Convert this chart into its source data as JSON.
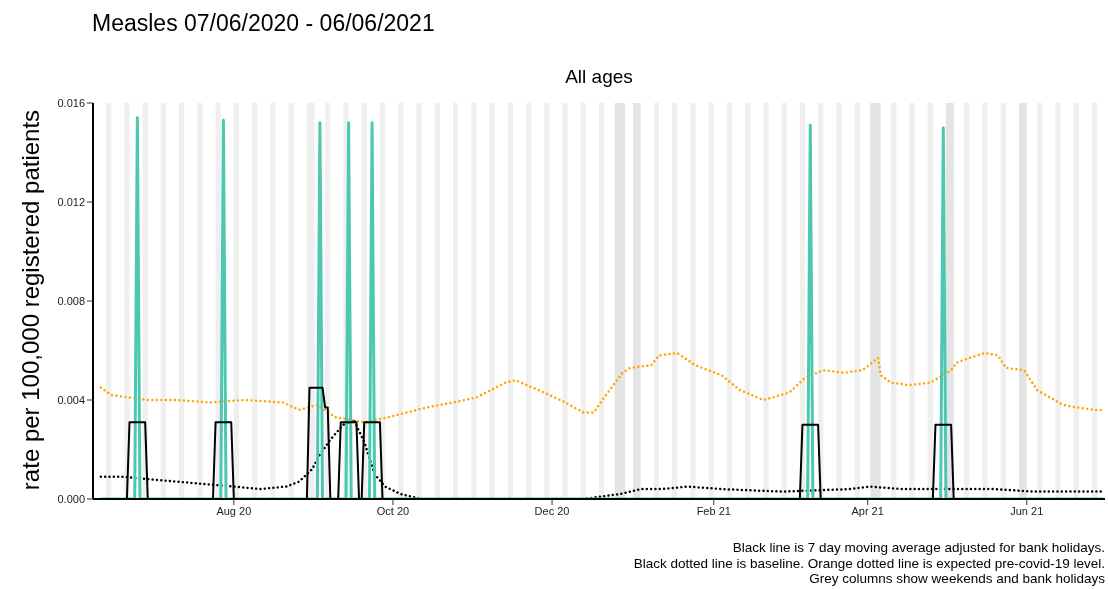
{
  "chart_data": {
    "type": "line",
    "title": "Measles 07/06/2020 - 06/06/2021",
    "subtitle": "All ages",
    "ylabel": "rate per 100,000 registered patients",
    "annotations": [
      "Black line is 7 day moving average adjusted for bank holidays.",
      "Black dotted line is baseline. Orange dotted line is expected pre-covid-19 level.",
      "Grey columns show weekends and bank holidays"
    ],
    "xlim": [
      "2020-06-08",
      "2021-07-01"
    ],
    "xticks": [
      {
        "value": "2020-08-01",
        "label": "Aug 20"
      },
      {
        "value": "2020-10-01",
        "label": "Oct 20"
      },
      {
        "value": "2020-12-01",
        "label": "Dec 20"
      },
      {
        "value": "2021-02-01",
        "label": "Feb 21"
      },
      {
        "value": "2021-04-01",
        "label": "Apr 21"
      },
      {
        "value": "2021-06-01",
        "label": "Jun 21"
      }
    ],
    "ylim": [
      0,
      0.016
    ],
    "yticks": [
      {
        "value": 0,
        "label": "0.000"
      },
      {
        "value": 0.004,
        "label": "0.004"
      },
      {
        "value": 0.008,
        "label": "0.008"
      },
      {
        "value": 0.012,
        "label": "0.012"
      },
      {
        "value": 0.016,
        "label": "0.016"
      }
    ],
    "grid": false,
    "series": [
      {
        "line_style": "dotted",
        "color": "#ffa500",
        "x": [
          "2020-06-11",
          "2020-06-15",
          "2020-06-22",
          "2020-06-29",
          "2020-07-10",
          "2020-07-23",
          "2020-08-05",
          "2020-08-20",
          "2020-08-26",
          "2020-09-02",
          "2020-09-09",
          "2020-09-20",
          "2020-09-29",
          "2020-10-14",
          "2020-10-24",
          "2020-11-02",
          "2020-11-13",
          "2020-11-17",
          "2020-11-28",
          "2020-12-06",
          "2020-12-13",
          "2020-12-17",
          "2020-12-21",
          "2020-12-28",
          "2020-12-31",
          "2021-01-08",
          "2021-01-11",
          "2021-01-18",
          "2021-01-25",
          "2021-02-04",
          "2021-02-11",
          "2021-02-20",
          "2021-03-02",
          "2021-03-08",
          "2021-03-15",
          "2021-03-23",
          "2021-03-30",
          "2021-04-05",
          "2021-04-06",
          "2021-04-10",
          "2021-04-17",
          "2021-04-25",
          "2021-05-03",
          "2021-05-05",
          "2021-05-10",
          "2021-05-16",
          "2021-05-21",
          "2021-05-24",
          "2021-05-31",
          "2021-06-05",
          "2021-06-15",
          "2021-06-20",
          "2021-06-27",
          "2021-06-30"
        ],
        "values": [
          0.0045,
          0.0042,
          0.0041,
          0.004,
          0.004,
          0.0039,
          0.004,
          0.0039,
          0.0036,
          0.0038,
          0.0033,
          0.0031,
          0.0033,
          0.0037,
          0.0039,
          0.0041,
          0.0047,
          0.0048,
          0.0043,
          0.0039,
          0.0035,
          0.0035,
          0.0041,
          0.0051,
          0.0053,
          0.0054,
          0.0058,
          0.0059,
          0.0054,
          0.005,
          0.0044,
          0.004,
          0.0043,
          0.0049,
          0.0052,
          0.0051,
          0.0052,
          0.0057,
          0.005,
          0.0047,
          0.0046,
          0.0047,
          0.0052,
          0.0055,
          0.0057,
          0.0059,
          0.0058,
          0.0053,
          0.0052,
          0.0044,
          0.0038,
          0.0037,
          0.0036,
          0.0036
        ]
      },
      {
        "line_style": "dotted",
        "color": "#000000",
        "x": [
          "2020-06-11",
          "2020-06-19",
          "2020-06-29",
          "2020-07-10",
          "2020-07-21",
          "2020-08-01",
          "2020-08-11",
          "2020-08-21",
          "2020-08-26",
          "2020-08-31",
          "2020-09-03",
          "2020-09-07",
          "2020-09-12",
          "2020-09-16",
          "2020-09-20",
          "2020-09-24",
          "2020-09-28",
          "2020-10-04",
          "2020-10-12",
          "2020-12-13",
          "2020-12-27",
          "2021-01-04",
          "2021-01-12",
          "2021-01-22",
          "2021-02-04",
          "2021-02-27",
          "2021-03-25",
          "2021-04-02",
          "2021-04-14",
          "2021-05-03",
          "2021-05-19",
          "2021-06-04",
          "2021-06-30"
        ],
        "values": [
          0.0009,
          0.0009,
          0.0008,
          0.0007,
          0.0006,
          0.0005,
          0.0004,
          0.0005,
          0.0007,
          0.0012,
          0.0018,
          0.0024,
          0.003,
          0.0032,
          0.0023,
          0.001,
          0.0005,
          0.0002,
          0,
          0,
          0.0002,
          0.0004,
          0.0004,
          0.0005,
          0.0004,
          0.0003,
          0.0004,
          0.0005,
          0.0004,
          0.0004,
          0.0004,
          0.0003,
          0.0003
        ]
      },
      {
        "line_style": "solid",
        "color": "#4dc8b0",
        "x": [
          "2020-06-11",
          "2020-06-24",
          "2020-06-25",
          "2020-06-26",
          "2020-07-27",
          "2020-07-28",
          "2020-07-29",
          "2020-09-02",
          "2020-09-03",
          "2020-09-04",
          "2020-09-13",
          "2020-09-14",
          "2020-09-15",
          "2020-09-22",
          "2020-09-23",
          "2020-09-24",
          "2021-03-09",
          "2021-03-10",
          "2021-03-11",
          "2021-04-29",
          "2021-04-30",
          "2021-05-01",
          "2021-06-30"
        ],
        "values": [
          0,
          0,
          0.0154,
          0,
          0,
          0.0153,
          0,
          0,
          0.0152,
          0,
          0,
          0.0152,
          0,
          0,
          0.0152,
          0,
          0,
          0.0151,
          0,
          0,
          0.015,
          0,
          0
        ]
      },
      {
        "line_style": "solid",
        "color": "#000000",
        "x": [
          "2020-06-11",
          "2020-06-21",
          "2020-06-22",
          "2020-06-28",
          "2020-06-29",
          "2020-07-24",
          "2020-07-25",
          "2020-07-31",
          "2020-08-01",
          "2020-08-29",
          "2020-08-30",
          "2020-09-04",
          "2020-09-05",
          "2020-09-06",
          "2020-09-07",
          "2020-09-10",
          "2020-09-11",
          "2020-09-17",
          "2020-09-18",
          "2020-09-19",
          "2020-09-20",
          "2020-09-26",
          "2020-09-27",
          "2021-03-06",
          "2021-03-07",
          "2021-03-13",
          "2021-03-14",
          "2021-04-26",
          "2021-04-27",
          "2021-05-03",
          "2021-05-04",
          "2021-06-30"
        ],
        "values": [
          0,
          0,
          0.0031,
          0.0031,
          0,
          0,
          0.0031,
          0.0031,
          0,
          0,
          0.0045,
          0.0045,
          0.0037,
          0.0037,
          0,
          0,
          0.0031,
          0.0031,
          0,
          0,
          0.0031,
          0.0031,
          0,
          0,
          0.003,
          0.003,
          0,
          0,
          0.003,
          0.003,
          0,
          0
        ]
      }
    ],
    "bands": [
      {
        "axis": "x",
        "from": "2020-06-13",
        "to": "2020-06-15",
        "color": "#efefef"
      },
      {
        "axis": "x",
        "from": "2020-06-20",
        "to": "2020-06-22",
        "color": "#efefef"
      },
      {
        "axis": "x",
        "from": "2020-06-27",
        "to": "2020-06-29",
        "color": "#efefef"
      },
      {
        "axis": "x",
        "from": "2020-07-04",
        "to": "2020-07-06",
        "color": "#efefef"
      },
      {
        "axis": "x",
        "from": "2020-07-11",
        "to": "2020-07-13",
        "color": "#efefef"
      },
      {
        "axis": "x",
        "from": "2020-07-18",
        "to": "2020-07-20",
        "color": "#efefef"
      },
      {
        "axis": "x",
        "from": "2020-07-25",
        "to": "2020-07-27",
        "color": "#efefef"
      },
      {
        "axis": "x",
        "from": "2020-08-01",
        "to": "2020-08-03",
        "color": "#efefef"
      },
      {
        "axis": "x",
        "from": "2020-08-08",
        "to": "2020-08-10",
        "color": "#efefef"
      },
      {
        "axis": "x",
        "from": "2020-08-15",
        "to": "2020-08-17",
        "color": "#efefef"
      },
      {
        "axis": "x",
        "from": "2020-08-22",
        "to": "2020-08-24",
        "color": "#efefef"
      },
      {
        "axis": "x",
        "from": "2020-08-29",
        "to": "2020-09-01",
        "color": "#efefef"
      },
      {
        "axis": "x",
        "from": "2020-09-05",
        "to": "2020-09-07",
        "color": "#efefef"
      },
      {
        "axis": "x",
        "from": "2020-09-12",
        "to": "2020-09-14",
        "color": "#efefef"
      },
      {
        "axis": "x",
        "from": "2020-09-19",
        "to": "2020-09-21",
        "color": "#efefef"
      },
      {
        "axis": "x",
        "from": "2020-09-26",
        "to": "2020-09-28",
        "color": "#efefef"
      },
      {
        "axis": "x",
        "from": "2020-10-03",
        "to": "2020-10-05",
        "color": "#efefef"
      },
      {
        "axis": "x",
        "from": "2020-10-10",
        "to": "2020-10-12",
        "color": "#efefef"
      },
      {
        "axis": "x",
        "from": "2020-10-17",
        "to": "2020-10-19",
        "color": "#efefef"
      },
      {
        "axis": "x",
        "from": "2020-10-24",
        "to": "2020-10-26",
        "color": "#efefef"
      },
      {
        "axis": "x",
        "from": "2020-10-31",
        "to": "2020-11-02",
        "color": "#efefef"
      },
      {
        "axis": "x",
        "from": "2020-11-07",
        "to": "2020-11-09",
        "color": "#efefef"
      },
      {
        "axis": "x",
        "from": "2020-11-14",
        "to": "2020-11-16",
        "color": "#efefef"
      },
      {
        "axis": "x",
        "from": "2020-11-21",
        "to": "2020-11-23",
        "color": "#efefef"
      },
      {
        "axis": "x",
        "from": "2020-11-28",
        "to": "2020-11-30",
        "color": "#efefef"
      },
      {
        "axis": "x",
        "from": "2020-12-05",
        "to": "2020-12-07",
        "color": "#efefef"
      },
      {
        "axis": "x",
        "from": "2020-12-12",
        "to": "2020-12-14",
        "color": "#efefef"
      },
      {
        "axis": "x",
        "from": "2020-12-19",
        "to": "2020-12-21",
        "color": "#efefef"
      },
      {
        "axis": "x",
        "from": "2020-12-25",
        "to": "2020-12-29",
        "color": "#e4e4e4"
      },
      {
        "axis": "x",
        "from": "2021-01-01",
        "to": "2021-01-04",
        "color": "#e4e4e4"
      },
      {
        "axis": "x",
        "from": "2021-01-09",
        "to": "2021-01-11",
        "color": "#efefef"
      },
      {
        "axis": "x",
        "from": "2021-01-16",
        "to": "2021-01-18",
        "color": "#efefef"
      },
      {
        "axis": "x",
        "from": "2021-01-23",
        "to": "2021-01-25",
        "color": "#efefef"
      },
      {
        "axis": "x",
        "from": "2021-01-30",
        "to": "2021-02-01",
        "color": "#efefef"
      },
      {
        "axis": "x",
        "from": "2021-02-06",
        "to": "2021-02-08",
        "color": "#efefef"
      },
      {
        "axis": "x",
        "from": "2021-02-13",
        "to": "2021-02-15",
        "color": "#efefef"
      },
      {
        "axis": "x",
        "from": "2021-02-20",
        "to": "2021-02-22",
        "color": "#efefef"
      },
      {
        "axis": "x",
        "from": "2021-02-27",
        "to": "2021-03-01",
        "color": "#efefef"
      },
      {
        "axis": "x",
        "from": "2021-03-06",
        "to": "2021-03-08",
        "color": "#efefef"
      },
      {
        "axis": "x",
        "from": "2021-03-13",
        "to": "2021-03-15",
        "color": "#efefef"
      },
      {
        "axis": "x",
        "from": "2021-03-20",
        "to": "2021-03-22",
        "color": "#efefef"
      },
      {
        "axis": "x",
        "from": "2021-03-27",
        "to": "2021-03-29",
        "color": "#efefef"
      },
      {
        "axis": "x",
        "from": "2021-04-02",
        "to": "2021-04-06",
        "color": "#e4e4e4"
      },
      {
        "axis": "x",
        "from": "2021-04-10",
        "to": "2021-04-12",
        "color": "#efefef"
      },
      {
        "axis": "x",
        "from": "2021-04-17",
        "to": "2021-04-19",
        "color": "#efefef"
      },
      {
        "axis": "x",
        "from": "2021-04-24",
        "to": "2021-04-26",
        "color": "#efefef"
      },
      {
        "axis": "x",
        "from": "2021-05-01",
        "to": "2021-05-04",
        "color": "#e4e4e4"
      },
      {
        "axis": "x",
        "from": "2021-05-08",
        "to": "2021-05-10",
        "color": "#efefef"
      },
      {
        "axis": "x",
        "from": "2021-05-15",
        "to": "2021-05-17",
        "color": "#efefef"
      },
      {
        "axis": "x",
        "from": "2021-05-22",
        "to": "2021-05-24",
        "color": "#efefef"
      },
      {
        "axis": "x",
        "from": "2021-05-29",
        "to": "2021-06-01",
        "color": "#e4e4e4"
      },
      {
        "axis": "x",
        "from": "2021-06-05",
        "to": "2021-06-07",
        "color": "#efefef"
      },
      {
        "axis": "x",
        "from": "2021-06-12",
        "to": "2021-06-14",
        "color": "#efefef"
      },
      {
        "axis": "x",
        "from": "2021-06-19",
        "to": "2021-06-21",
        "color": "#efefef"
      },
      {
        "axis": "x",
        "from": "2021-06-26",
        "to": "2021-06-28",
        "color": "#efefef"
      }
    ]
  }
}
